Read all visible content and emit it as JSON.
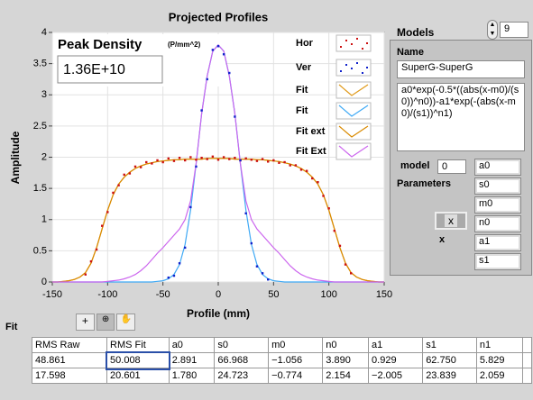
{
  "chart_data": {
    "type": "line",
    "title": "Projected Profiles",
    "x_label": "Profile (mm)",
    "y_label": "Amplitude",
    "xlim": [
      -150,
      150
    ],
    "xticks": [
      -150,
      -100,
      -50,
      0,
      50,
      100,
      150
    ],
    "ylim": [
      0,
      4
    ],
    "yticks": [
      0,
      0.5,
      1,
      1.5,
      2,
      2.5,
      3,
      3.5,
      4
    ],
    "grid": true,
    "legend": "upper right",
    "series": [
      {
        "name": "Hor",
        "color": "#cc1111",
        "style": "dots",
        "x": [
          -120,
          -115,
          -110,
          -105,
          -100,
          -95,
          -90,
          -85,
          -80,
          -75,
          -70,
          -65,
          -60,
          -55,
          -50,
          -45,
          -40,
          -35,
          -30,
          -25,
          -20,
          -15,
          -10,
          -5,
          0,
          5,
          10,
          15,
          20,
          25,
          30,
          35,
          40,
          45,
          50,
          55,
          60,
          65,
          70,
          75,
          80,
          85,
          90,
          95,
          100,
          105,
          110,
          115,
          120
        ],
        "values": [
          0.12,
          0.33,
          0.52,
          0.9,
          1.12,
          1.43,
          1.55,
          1.72,
          1.74,
          1.85,
          1.84,
          1.92,
          1.9,
          1.95,
          1.92,
          1.98,
          1.94,
          1.99,
          1.95,
          2.0,
          1.96,
          1.99,
          1.97,
          2.01,
          1.96,
          2.0,
          1.97,
          1.99,
          1.95,
          1.98,
          1.96,
          1.94,
          1.97,
          1.93,
          1.95,
          1.91,
          1.92,
          1.87,
          1.87,
          1.8,
          1.78,
          1.66,
          1.6,
          1.38,
          1.18,
          0.82,
          0.58,
          0.28,
          0.14
        ]
      },
      {
        "name": "Ver",
        "color": "#1122cc",
        "style": "dots",
        "x": [
          -45,
          -40,
          -35,
          -30,
          -25,
          -20,
          -15,
          -10,
          -5,
          0,
          5,
          10,
          15,
          20,
          25,
          30,
          35,
          40,
          45
        ],
        "values": [
          0.07,
          0.1,
          0.3,
          0.55,
          1.2,
          1.85,
          2.75,
          3.25,
          3.72,
          3.78,
          3.65,
          3.35,
          2.65,
          1.95,
          1.1,
          0.62,
          0.25,
          0.14,
          0.04
        ]
      },
      {
        "name": "Fit",
        "color": "#e09a1a",
        "style": "line",
        "x": [
          -150,
          -145,
          -140,
          -135,
          -130,
          -125,
          -120,
          -115,
          -110,
          -105,
          -100,
          -95,
          -90,
          -85,
          -80,
          -75,
          -70,
          -65,
          -60,
          -55,
          -50,
          -45,
          -40,
          -35,
          -30,
          -25,
          -20,
          -15,
          -10,
          -5,
          0,
          5,
          10,
          15,
          20,
          25,
          30,
          35,
          40,
          45,
          50,
          55,
          60,
          65,
          70,
          75,
          80,
          85,
          90,
          95,
          100,
          105,
          110,
          115,
          120,
          125,
          130,
          135,
          140,
          145,
          150
        ],
        "values": [
          0,
          0,
          0.01,
          0.02,
          0.04,
          0.08,
          0.15,
          0.3,
          0.55,
          0.85,
          1.15,
          1.4,
          1.57,
          1.68,
          1.76,
          1.82,
          1.86,
          1.89,
          1.91,
          1.93,
          1.94,
          1.95,
          1.96,
          1.96,
          1.97,
          1.97,
          1.97,
          1.97,
          1.98,
          1.98,
          1.98,
          1.98,
          1.98,
          1.97,
          1.97,
          1.97,
          1.97,
          1.96,
          1.96,
          1.95,
          1.94,
          1.93,
          1.91,
          1.89,
          1.86,
          1.82,
          1.76,
          1.68,
          1.57,
          1.4,
          1.15,
          0.85,
          0.55,
          0.3,
          0.15,
          0.08,
          0.04,
          0.02,
          0.01,
          0,
          0
        ]
      },
      {
        "name": "Fit",
        "color": "#3fa9f5",
        "style": "line",
        "x": [
          -150,
          -145,
          -140,
          -135,
          -130,
          -125,
          -120,
          -115,
          -110,
          -105,
          -100,
          -95,
          -90,
          -85,
          -80,
          -75,
          -70,
          -65,
          -60,
          -55,
          -50,
          -45,
          -40,
          -35,
          -30,
          -25,
          -20,
          -15,
          -10,
          -5,
          0,
          5,
          10,
          15,
          20,
          25,
          30,
          35,
          40,
          45,
          50,
          55,
          60,
          65,
          70,
          75,
          80,
          85,
          90,
          95,
          100,
          105,
          110,
          115,
          120,
          125,
          130,
          135,
          140,
          145,
          150
        ],
        "values": [
          0,
          0,
          0,
          0,
          0,
          0,
          0,
          0,
          0,
          0,
          0,
          0,
          0,
          0,
          0,
          0,
          0,
          0,
          0,
          0.01,
          0.02,
          0.05,
          0.12,
          0.28,
          0.6,
          1.15,
          1.9,
          2.7,
          3.3,
          3.7,
          3.8,
          3.7,
          3.3,
          2.7,
          1.9,
          1.15,
          0.6,
          0.28,
          0.12,
          0.05,
          0.02,
          0.01,
          0,
          0,
          0,
          0,
          0,
          0,
          0,
          0,
          0,
          0,
          0,
          0,
          0,
          0,
          0,
          0,
          0,
          0,
          0
        ]
      },
      {
        "name": "Fit ext",
        "color": "#d98a00",
        "style": "line",
        "x": [
          -150,
          -145,
          -140,
          -135,
          -130,
          -125,
          -120,
          -115,
          -110,
          -105,
          -100,
          -95,
          -90,
          -85,
          -80,
          -75,
          -70,
          -65,
          -60,
          -55,
          -50,
          -45,
          -40,
          -35,
          -30,
          -25,
          -20,
          -15,
          -10,
          -5,
          0,
          5,
          10,
          15,
          20,
          25,
          30,
          35,
          40,
          45,
          50,
          55,
          60,
          65,
          70,
          75,
          80,
          85,
          90,
          95,
          100,
          105,
          110,
          115,
          120,
          125,
          130,
          135,
          140,
          145,
          150
        ],
        "values": [
          0,
          0,
          0.01,
          0.02,
          0.04,
          0.08,
          0.15,
          0.3,
          0.55,
          0.85,
          1.15,
          1.4,
          1.57,
          1.68,
          1.76,
          1.82,
          1.86,
          1.89,
          1.91,
          1.93,
          1.94,
          1.95,
          1.96,
          1.96,
          1.97,
          1.97,
          1.97,
          1.97,
          1.98,
          1.98,
          1.98,
          1.98,
          1.98,
          1.97,
          1.97,
          1.97,
          1.97,
          1.96,
          1.96,
          1.95,
          1.94,
          1.93,
          1.91,
          1.89,
          1.86,
          1.82,
          1.76,
          1.68,
          1.57,
          1.4,
          1.15,
          0.85,
          0.55,
          0.3,
          0.15,
          0.08,
          0.04,
          0.02,
          0.01,
          0,
          0
        ]
      },
      {
        "name": "Fit Ext",
        "color": "#cc66ee",
        "style": "line",
        "x": [
          -150,
          -145,
          -140,
          -135,
          -130,
          -125,
          -120,
          -115,
          -110,
          -105,
          -100,
          -95,
          -90,
          -85,
          -80,
          -75,
          -70,
          -65,
          -60,
          -55,
          -50,
          -45,
          -40,
          -35,
          -30,
          -25,
          -20,
          -15,
          -10,
          -5,
          0,
          5,
          10,
          15,
          20,
          25,
          30,
          35,
          40,
          45,
          50,
          55,
          60,
          65,
          70,
          75,
          80,
          85,
          90,
          95,
          100,
          105,
          110,
          115,
          120,
          125,
          130,
          135,
          140,
          145,
          150
        ],
        "values": [
          0,
          0,
          0,
          0,
          0,
          0,
          0,
          0,
          0,
          0,
          0.01,
          0.02,
          0.03,
          0.05,
          0.08,
          0.12,
          0.18,
          0.26,
          0.36,
          0.46,
          0.55,
          0.65,
          0.75,
          0.85,
          1.0,
          1.3,
          1.9,
          2.7,
          3.3,
          3.7,
          3.8,
          3.7,
          3.3,
          2.7,
          1.9,
          1.3,
          1.0,
          0.85,
          0.75,
          0.65,
          0.55,
          0.46,
          0.36,
          0.26,
          0.18,
          0.12,
          0.08,
          0.05,
          0.03,
          0.02,
          0.01,
          0,
          0,
          0,
          0,
          0,
          0,
          0,
          0,
          0,
          0
        ]
      }
    ]
  },
  "peak": {
    "title": "Peak Density",
    "unit": "(P/mm^2)",
    "value": "1.36E+10"
  },
  "models": {
    "label": "Models",
    "count": 9,
    "name_label": "Name",
    "name": "SuperG-SuperG",
    "formula": "a0*exp(-0.5*((abs(x-m0)/(s0))^n0))-a1*exp(-(abs(x-m0)/(s1))^n1)",
    "model_label": "model",
    "model": 0,
    "parameters_label": "Parameters",
    "parameters": [
      "a0",
      "s0",
      "m0",
      "n0",
      "a1",
      "s1"
    ],
    "x_button": "x",
    "x_label": "x"
  },
  "fit": {
    "label": "Fit",
    "table": {
      "header": [
        "RMS Raw",
        "RMS Fit",
        "a0",
        "s0",
        "m0",
        "n0",
        "a1",
        "s1",
        "n1"
      ],
      "rows": [
        [
          "48.861",
          "50.008",
          "2.891",
          "66.968",
          "−1.056",
          "3.890",
          "0.929",
          "62.750",
          "5.829"
        ],
        [
          "17.598",
          "20.601",
          "1.780",
          "24.723",
          "−0.774",
          "2.154",
          "−2.005",
          "23.839",
          "2.059"
        ]
      ]
    }
  }
}
